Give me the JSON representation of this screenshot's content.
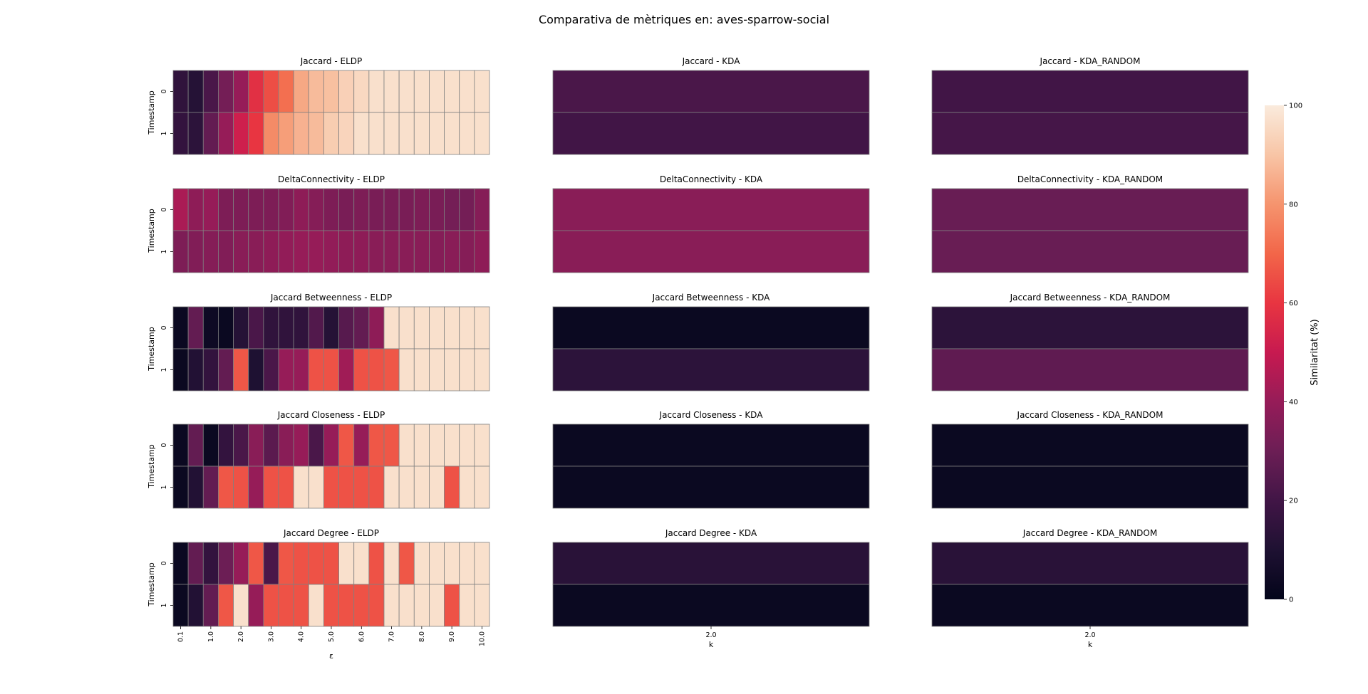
{
  "figure": {
    "title": "Comparativa de mètriques en: aves-sparrow-social",
    "colorbar_label": "Similaritat (%)",
    "colorbar_ticks": [
      0,
      20,
      40,
      60,
      80,
      100
    ],
    "colormap": "rocket",
    "grid_color": "#808080"
  },
  "chart_data": {
    "type": "heatmap",
    "vmin": 0,
    "vmax": 100,
    "ylabel": "Timestamp",
    "row_labels": [
      "0",
      "1"
    ],
    "eldp_xlabel": "ε",
    "eldp_xticks": [
      "0.1",
      "1.0",
      "2.0",
      "3.0",
      "4.0",
      "5.0",
      "6.0",
      "7.0",
      "8.0",
      "9.0",
      "10.0"
    ],
    "kda_xlabel": "k",
    "kda_xticks": [
      "2.0"
    ],
    "rows": [
      {
        "metric": "Jaccard",
        "panels": [
          {
            "title": "Jaccard - ELDP",
            "values": [
              [
                15,
                12,
                22,
                32,
                40,
                58,
                65,
                72,
                84,
                88,
                89,
                93,
                95,
                97,
                97,
                97,
                97,
                97,
                97,
                97,
                97
              ],
              [
                16,
                14,
                28,
                40,
                52,
                60,
                78,
                82,
                86,
                88,
                92,
                94,
                97,
                97,
                97,
                97,
                97,
                97,
                97,
                97,
                97
              ]
            ]
          },
          {
            "title": "Jaccard - KDA",
            "values": [
              [
                22
              ],
              [
                20
              ]
            ]
          },
          {
            "title": "Jaccard - KDA_RANDOM",
            "values": [
              [
                20
              ],
              [
                21
              ]
            ]
          }
        ]
      },
      {
        "metric": "DeltaConnectivity",
        "panels": [
          {
            "title": "DeltaConnectivity - ELDP",
            "values": [
              [
                44,
                38,
                40,
                34,
                34,
                34,
                34,
                35,
                38,
                36,
                34,
                33,
                34,
                33,
                33,
                33,
                34,
                33,
                32,
                32,
                36
              ],
              [
                34,
                35,
                36,
                35,
                37,
                37,
                38,
                39,
                40,
                40,
                39,
                38,
                38,
                37,
                37,
                37,
                37,
                36,
                37,
                36,
                38
              ]
            ]
          },
          {
            "title": "DeltaConnectivity - KDA",
            "values": [
              [
                37
              ],
              [
                37
              ]
            ]
          },
          {
            "title": "DeltaConnectivity - KDA_RANDOM",
            "values": [
              [
                29
              ],
              [
                29
              ]
            ]
          }
        ]
      },
      {
        "metric": "Jaccard Betweenness",
        "panels": [
          {
            "title": "Jaccard Betweenness - ELDP",
            "values": [
              [
                3,
                28,
                4,
                3,
                12,
                22,
                15,
                15,
                15,
                24,
                12,
                25,
                28,
                38,
                97,
                97,
                97,
                97,
                97,
                97,
                97
              ],
              [
                3,
                11,
                16,
                28,
                67,
                10,
                22,
                40,
                40,
                66,
                66,
                42,
                66,
                66,
                67,
                97,
                97,
                97,
                97,
                97,
                97
              ]
            ]
          },
          {
            "title": "Jaccard Betweenness - KDA",
            "values": [
              [
                3
              ],
              [
                14
              ]
            ]
          },
          {
            "title": "Jaccard Betweenness - KDA_RANDOM",
            "values": [
              [
                14
              ],
              [
                27
              ]
            ]
          }
        ]
      },
      {
        "metric": "Jaccard Closeness",
        "panels": [
          {
            "title": "Jaccard Closeness - ELDP",
            "values": [
              [
                3,
                28,
                3,
                16,
                22,
                37,
                26,
                37,
                40,
                22,
                40,
                67,
                40,
                67,
                67,
                97,
                97,
                97,
                97,
                97,
                97
              ],
              [
                3,
                11,
                28,
                67,
                66,
                40,
                66,
                66,
                97,
                97,
                66,
                66,
                66,
                66,
                97,
                97,
                97,
                97,
                66,
                97,
                97
              ]
            ]
          },
          {
            "title": "Jaccard Closeness - KDA",
            "values": [
              [
                3
              ],
              [
                3
              ]
            ]
          },
          {
            "title": "Jaccard Closeness - KDA_RANDOM",
            "values": [
              [
                3
              ],
              [
                3
              ]
            ]
          }
        ]
      },
      {
        "metric": "Jaccard Degree",
        "panels": [
          {
            "title": "Jaccard Degree - ELDP",
            "values": [
              [
                3,
                28,
                16,
                30,
                40,
                67,
                22,
                67,
                66,
                66,
                66,
                97,
                97,
                66,
                97,
                67,
                97,
                97,
                97,
                97,
                97
              ],
              [
                3,
                11,
                28,
                67,
                97,
                40,
                66,
                66,
                66,
                97,
                66,
                66,
                66,
                66,
                97,
                97,
                97,
                97,
                66,
                97,
                97
              ]
            ]
          },
          {
            "title": "Jaccard Degree - KDA",
            "values": [
              [
                13
              ],
              [
                3
              ]
            ]
          },
          {
            "title": "Jaccard Degree - KDA_RANDOM",
            "values": [
              [
                13
              ],
              [
                3
              ]
            ]
          }
        ]
      }
    ]
  }
}
